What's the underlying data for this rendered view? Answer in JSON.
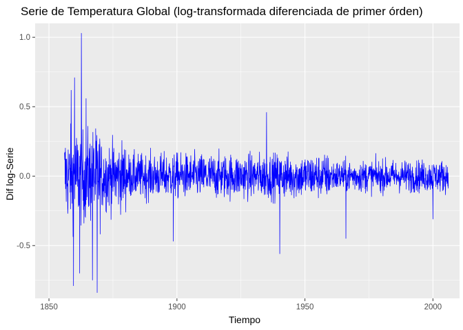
{
  "chart_data": {
    "type": "line",
    "title": "Serie de Temperatura Global (log-transformada diferenciada de primer órden)",
    "xlabel": "Tiempo",
    "ylabel": "Dif log-Serie",
    "xlim": [
      1844.6,
      2010.4
    ],
    "ylim": [
      -0.88,
      1.1
    ],
    "x_ticks": [
      1850,
      1900,
      1950,
      2000
    ],
    "x_tick_labels": [
      "1850",
      "1900",
      "1950",
      "2000"
    ],
    "y_ticks": [
      -0.5,
      0.0,
      0.5,
      1.0
    ],
    "y_tick_labels": [
      "-0.5",
      "0.0",
      "0.5",
      "1.0"
    ],
    "x_minor_ticks": [
      1875,
      1925,
      1975
    ],
    "y_minor_ticks": [
      -0.75,
      -0.25,
      0.25,
      0.75
    ],
    "grid": true,
    "legend": "none",
    "panel_background": "#ebebeb",
    "grid_color": "#ffffff",
    "series": [
      {
        "color": "#0000ff",
        "x_start": 1856.0833,
        "x_step": 0.0833333,
        "n": 1800,
        "peaks": [
          {
            "x": 1862.7,
            "y": 1.03
          },
          {
            "x": 1860.0,
            "y": 0.71
          },
          {
            "x": 1858.7,
            "y": 0.62
          },
          {
            "x": 1864.5,
            "y": 0.56
          },
          {
            "x": 1935.0,
            "y": 0.46
          },
          {
            "x": 1868.8,
            "y": -0.84
          },
          {
            "x": 1859.6,
            "y": -0.79
          },
          {
            "x": 1867.0,
            "y": -0.75
          },
          {
            "x": 1862.0,
            "y": -0.7
          },
          {
            "x": 1940.2,
            "y": -0.56
          },
          {
            "x": 1966.0,
            "y": -0.45
          },
          {
            "x": 1898.6,
            "y": -0.47
          },
          {
            "x": 2000.0,
            "y": -0.31
          }
        ]
      }
    ]
  }
}
